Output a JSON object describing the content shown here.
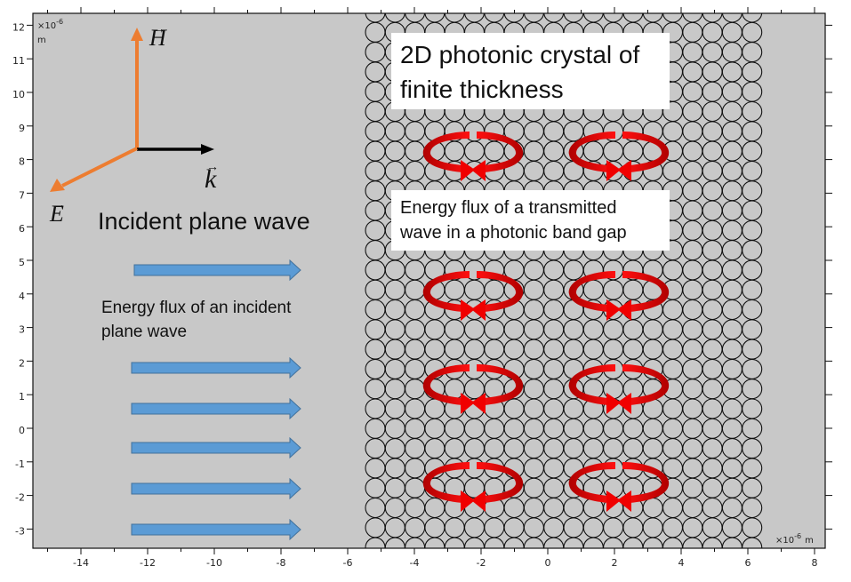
{
  "chart_data": {
    "type": "diagram",
    "title": "",
    "xlabel": "x10^-6 m",
    "ylabel": "x10^-6 m",
    "x_ticks": [
      -14,
      -12,
      -10,
      -8,
      -6,
      -4,
      -2,
      0,
      2,
      4,
      6,
      8
    ],
    "y_ticks": [
      12,
      11,
      10,
      9,
      8,
      7,
      6,
      5,
      4,
      3,
      2,
      1,
      0,
      -1,
      -2,
      -3
    ],
    "xlim": [
      -15.5,
      8.3
    ],
    "ylim": [
      -3.6,
      12.4
    ],
    "grid": false,
    "background_color": "#c8c8c8",
    "crystal": {
      "x_range": [
        -5.3,
        6.6
      ],
      "columns": 20,
      "rows": 27,
      "circle_color": "#111111"
    },
    "incident_arrows_y": [
      4.9,
      1.9,
      0.7,
      -0.5,
      -1.7,
      -2.9
    ],
    "vortices": [
      {
        "x": -2.8,
        "y": 8.1
      },
      {
        "x": -1.3,
        "y": 8.1
      },
      {
        "x": 1.6,
        "y": 8.1
      },
      {
        "x": 3.1,
        "y": 8.1
      },
      {
        "x": -2.9,
        "y": 4.1
      },
      {
        "x": -1.3,
        "y": 4.1
      },
      {
        "x": 1.5,
        "y": 4.1
      },
      {
        "x": 3.1,
        "y": 4.1
      },
      {
        "x": -2.9,
        "y": 1.3
      },
      {
        "x": -1.3,
        "y": 1.3
      },
      {
        "x": 1.5,
        "y": 1.3
      },
      {
        "x": 3.1,
        "y": 1.3
      },
      {
        "x": -2.9,
        "y": -1.6
      },
      {
        "x": -1.3,
        "y": -1.6
      },
      {
        "x": 1.5,
        "y": -1.6
      },
      {
        "x": 3.1,
        "y": -1.6
      }
    ]
  },
  "axes": {
    "y_unit_exp": "×10",
    "y_unit_sup": "-6",
    "y_unit_m": "m",
    "x_unit_exp": "×10",
    "x_unit_sup": "-6",
    "x_unit_m": "m",
    "x_ticks": [
      "-14",
      "-12",
      "-10",
      "-8",
      "-6",
      "-4",
      "-2",
      "0",
      "2",
      "4",
      "6",
      "8"
    ],
    "y_ticks": [
      "12",
      "11",
      "10",
      "9",
      "8",
      "7",
      "6",
      "5",
      "4",
      "3",
      "2",
      "1",
      "0",
      "-1",
      "-2",
      "-3"
    ]
  },
  "vectors": {
    "h_label": "H",
    "k_label": "k",
    "e_label": "E",
    "orange": "#ed7d31",
    "black": "#000000"
  },
  "labels": {
    "incident_title": "Incident plane wave",
    "incident_flux_line1": "Energy flux of an incident",
    "incident_flux_line2": "plane wave",
    "crystal_title_line1": "2D photonic crystal of",
    "crystal_title_line2": "finite thickness",
    "transmitted_line1": "Energy flux of a transmitted",
    "transmitted_line2": "wave in a photonic band gap"
  },
  "colors": {
    "plot_bg": "#c8c8c8",
    "blue_arrow": "#5b9bd5",
    "blue_arrow_edge": "#41719c",
    "red_vortex": "#e8000b",
    "red_vortex_dark": "#b00000"
  }
}
